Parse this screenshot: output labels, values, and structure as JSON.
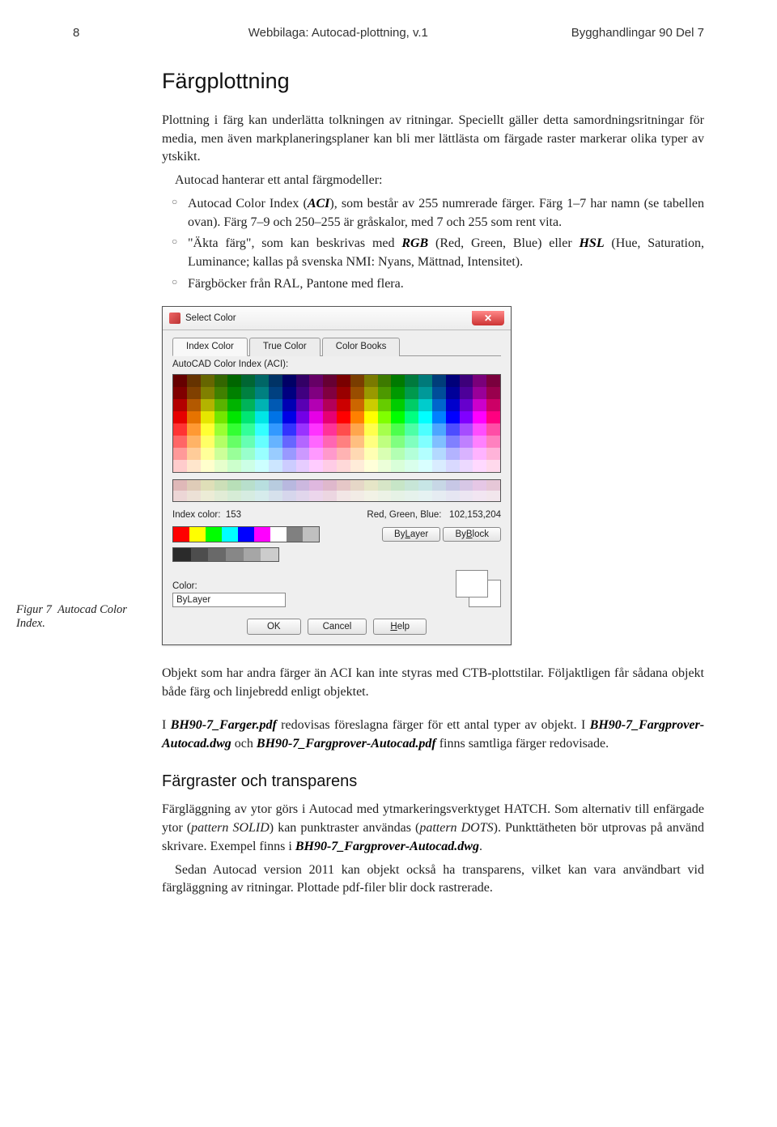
{
  "header": {
    "page_number": "8",
    "left": "Webbilaga: Autocad-plottning, v.1",
    "right": "Bygghandlingar 90 Del 7"
  },
  "section_title": "Färgplottning",
  "para1": "Plottning i färg kan underlätta tolkningen av ritningar. Speciellt gäller detta samordningsritningar för media, men även markplaneringsplaner kan bli mer lättlästa om färgade raster markerar olika typer av ytskikt.",
  "para2_lead": "Autocad hanterar ett antal färgmodeller:",
  "bullets": {
    "b1a": "Autocad Color Index (",
    "b1_aci": "ACI",
    "b1b": "), som består av 255 numrerade färger. Färg 1–7 har namn (se tabellen ovan). Färg 7–9 och 250–255 är gråskalor, med 7 och 255 som rent vita.",
    "b2a": "\"Äkta färg\", som kan beskrivas med ",
    "b2_rgb": "RGB",
    "b2b": " (Red, Green, Blue) eller ",
    "b2_hsl": "HSL",
    "b2c": " (Hue, Saturation, Luminance; kallas på svenska NMI: Nyans, Mättnad, Intensitet).",
    "b3": "Färgböcker från RAL, Pantone med flera."
  },
  "dialog": {
    "title": "Select Color",
    "tabs": {
      "t1": "Index Color",
      "t2": "True Color",
      "t3": "Color Books"
    },
    "aci_label": "AutoCAD Color Index (ACI):",
    "index_color_label": "Index color:",
    "index_color_value": "153",
    "rgb_label": "Red, Green, Blue:",
    "rgb_value": "102,153,204",
    "bylayer": "ByLayer",
    "bylayer_ul": "L",
    "byblock": "ByBlock",
    "byblock_ul": "B",
    "color_label": "Color:",
    "color_value": "ByLayer",
    "ok": "OK",
    "cancel": "Cancel",
    "help": "Help",
    "help_ul": "H",
    "std_colors": [
      "#ff0000",
      "#ffff00",
      "#00ff00",
      "#00ffff",
      "#0000ff",
      "#ff00ff",
      "#ffffff",
      "#808080",
      "#c0c0c0"
    ],
    "grays": [
      "#2b2b2b",
      "#4d4d4d",
      "#696969",
      "#878787",
      "#a6a6a6",
      "#cccccc"
    ],
    "palette_main_rows": [
      [
        "#660000",
        "#663300",
        "#666600",
        "#336600",
        "#006600",
        "#006633",
        "#006666",
        "#003366",
        "#000066",
        "#330066",
        "#660066",
        "#660033",
        "#7a0000",
        "#7a3d00",
        "#7a7a00",
        "#3d7a00",
        "#007a00",
        "#007a3d",
        "#007a7a",
        "#003d7a",
        "#00007a",
        "#3d007a",
        "#7a007a",
        "#7a003d"
      ],
      [
        "#800000",
        "#804000",
        "#808000",
        "#408000",
        "#008000",
        "#008040",
        "#008080",
        "#004080",
        "#000080",
        "#400080",
        "#800080",
        "#800040",
        "#990000",
        "#994d00",
        "#999900",
        "#4d9900",
        "#009900",
        "#00994d",
        "#009999",
        "#004d99",
        "#000099",
        "#4d0099",
        "#990099",
        "#99004d"
      ],
      [
        "#b30000",
        "#b35900",
        "#b3b300",
        "#59b300",
        "#00b300",
        "#00b359",
        "#00b3b3",
        "#0059b3",
        "#0000b3",
        "#5900b3",
        "#b300b3",
        "#b30059",
        "#cc0000",
        "#cc6600",
        "#cccc00",
        "#66cc00",
        "#00cc00",
        "#00cc66",
        "#00cccc",
        "#0066cc",
        "#0000cc",
        "#6600cc",
        "#cc00cc",
        "#cc0066"
      ],
      [
        "#e60000",
        "#e67300",
        "#e6e600",
        "#73e600",
        "#00e600",
        "#00e673",
        "#00e6e6",
        "#0073e6",
        "#0000e6",
        "#7300e6",
        "#e600e6",
        "#e60073",
        "#ff0000",
        "#ff8000",
        "#ffff00",
        "#80ff00",
        "#00ff00",
        "#00ff80",
        "#00ffff",
        "#0080ff",
        "#0000ff",
        "#8000ff",
        "#ff00ff",
        "#ff0080"
      ],
      [
        "#ff3333",
        "#ff9933",
        "#ffff33",
        "#99ff33",
        "#33ff33",
        "#33ff99",
        "#33ffff",
        "#3399ff",
        "#3333ff",
        "#9933ff",
        "#ff33ff",
        "#ff3399",
        "#ff4d4d",
        "#ffa64d",
        "#ffff4d",
        "#a6ff4d",
        "#4dff4d",
        "#4dffa6",
        "#4dffff",
        "#4da6ff",
        "#4d4dff",
        "#a64dff",
        "#ff4dff",
        "#ff4da6"
      ],
      [
        "#ff6666",
        "#ffb366",
        "#ffff66",
        "#b3ff66",
        "#66ff66",
        "#66ffb3",
        "#66ffff",
        "#66b3ff",
        "#6666ff",
        "#b366ff",
        "#ff66ff",
        "#ff66b3",
        "#ff8080",
        "#ffbf80",
        "#ffff80",
        "#bfff80",
        "#80ff80",
        "#80ffbf",
        "#80ffff",
        "#80bfff",
        "#8080ff",
        "#bf80ff",
        "#ff80ff",
        "#ff80bf"
      ],
      [
        "#ff9999",
        "#ffcc99",
        "#ffff99",
        "#ccff99",
        "#99ff99",
        "#99ffcc",
        "#99ffff",
        "#99ccff",
        "#9999ff",
        "#cc99ff",
        "#ff99ff",
        "#ff99cc",
        "#ffb3b3",
        "#ffd9b3",
        "#ffffb3",
        "#d9ffb3",
        "#b3ffb3",
        "#b3ffd9",
        "#b3ffff",
        "#b3d9ff",
        "#b3b3ff",
        "#d9b3ff",
        "#ffb3ff",
        "#ffb3d9"
      ],
      [
        "#ffcccc",
        "#ffe6cc",
        "#ffffcc",
        "#e6ffcc",
        "#ccffcc",
        "#ccffe6",
        "#ccffff",
        "#cce6ff",
        "#ccccff",
        "#e6ccff",
        "#ffccff",
        "#ffcce6",
        "#ffd9d9",
        "#ffecd9",
        "#ffffd9",
        "#ecffd9",
        "#d9ffd9",
        "#d9ffec",
        "#d9ffff",
        "#d9ecff",
        "#d9d9ff",
        "#ecd9ff",
        "#ffd9ff",
        "#ffd9ec"
      ]
    ],
    "palette_tint_rows": [
      [
        "#dfb8b8",
        "#dfccb8",
        "#dfdfb8",
        "#ccdfb8",
        "#b8dfb8",
        "#b8dfcc",
        "#b8dfdf",
        "#b8ccdf",
        "#b8b8df",
        "#ccb8df",
        "#dfb8df",
        "#dfb8cc",
        "#e6c7c7",
        "#e6d7c7",
        "#e6e6c7",
        "#d7e6c7",
        "#c7e6c7",
        "#c7e6d7",
        "#c7e6e6",
        "#c7d7e6",
        "#c7c7e6",
        "#d7c7e6",
        "#e6c7e6",
        "#e6c7d7"
      ],
      [
        "#ecd6d6",
        "#ece1d6",
        "#ececd6",
        "#e1ecd6",
        "#d6ecd6",
        "#d6ece1",
        "#d6ecec",
        "#d6e1ec",
        "#d6d6ec",
        "#e1d6ec",
        "#ecd6ec",
        "#ecd6e1",
        "#f2e6e6",
        "#f2ece6",
        "#f2f2e6",
        "#ecf2e6",
        "#e6f2e6",
        "#e6f2ec",
        "#e6f2f2",
        "#e6ecf2",
        "#e6e6f2",
        "#ece6f2",
        "#f2e6f2",
        "#f2e6ec"
      ]
    ]
  },
  "figure_caption": "Figur 7  Autocad Color Index.",
  "para3": "Objekt som har andra färger än ACI kan inte styras med CTB-plottstilar. Följaktligen får sådana objekt både färg och linjebredd enligt objektet.",
  "para4a": "I ",
  "para4_file1": "BH90-7_Farger.pdf",
  "para4b": " redovisas föreslagna färger för ett antal typer av objekt. I ",
  "para4_file2": "BH90-7_Fargprover-Autocad.dwg",
  "para4c": " och ",
  "para4_file3": "BH90-7_Fargprover-Autocad.pdf",
  "para4d": " finns samtliga färger redovisade.",
  "sub_title": "Färgraster och transparens",
  "para5a": "Färgläggning av ytor görs i Autocad med ytmarkeringsverktyget HATCH. Som alternativ till enfärgade ytor (",
  "para5_p1": "pattern SOLID",
  "para5b": ") kan punktraster användas (",
  "para5_p2": "pattern DOTS",
  "para5c": "). Punkttätheten bör utprovas på använd skrivare. Exempel finns i ",
  "para5_file": "BH90-7_Fargprover-Autocad.dwg",
  "para5d": ".",
  "para6_lead": "Sedan Autocad version 2011 kan objekt också ha transparens, vilket kan vara användbart vid färgläggning av ritningar. Plottade pdf-filer blir dock rastrerade."
}
